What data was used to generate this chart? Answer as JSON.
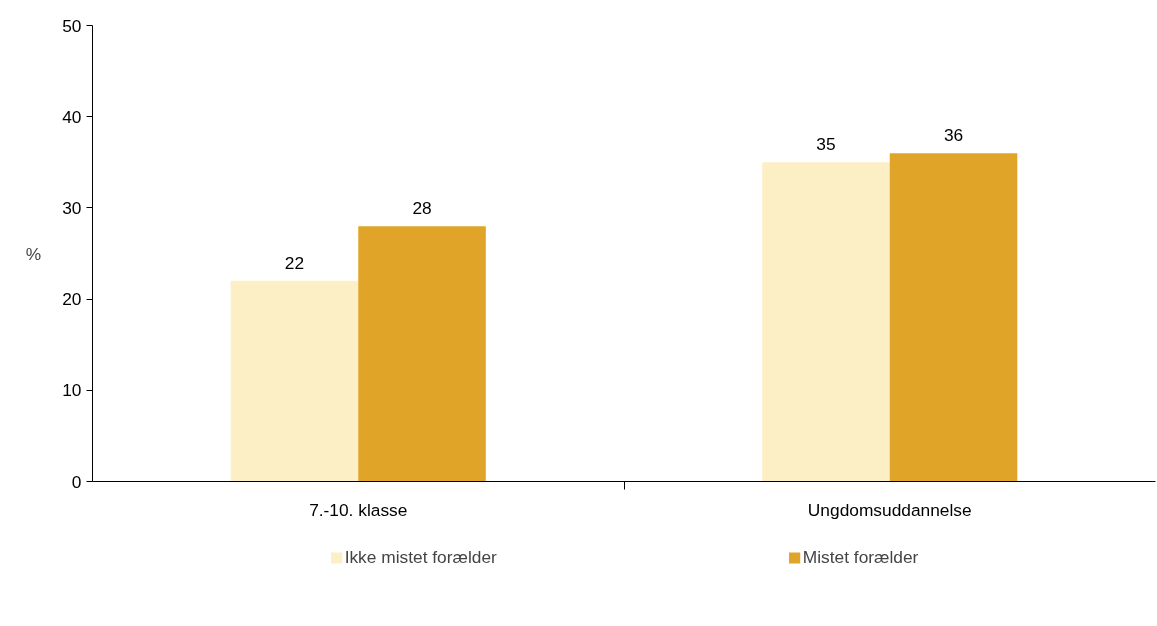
{
  "chart_data": {
    "type": "bar",
    "categories": [
      "7.-10. klasse",
      "Ungdomsuddannelse"
    ],
    "ylabel": "%",
    "ylim": [
      0,
      50
    ],
    "yticks": [
      0,
      10,
      20,
      30,
      40,
      50
    ],
    "series": [
      {
        "name": "Ikke mistet forælder",
        "color": "#fcefc6",
        "values": [
          22,
          35
        ]
      },
      {
        "name": "Mistet forælder",
        "color": "#e0a428",
        "values": [
          28,
          36
        ]
      }
    ],
    "data_labels": true,
    "grid": false,
    "legend": "bottom"
  }
}
